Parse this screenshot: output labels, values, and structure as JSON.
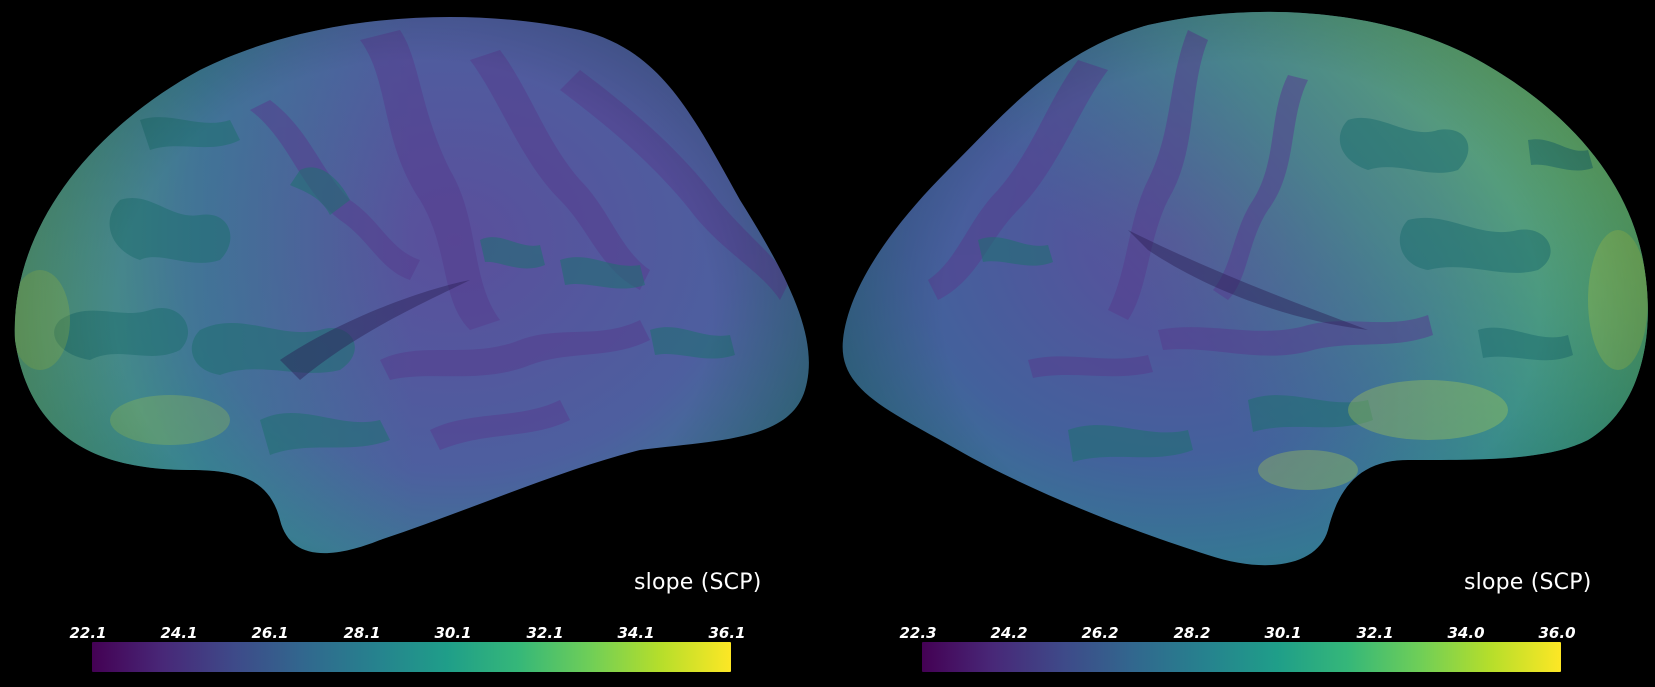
{
  "colormap": {
    "name": "viridis",
    "stops": [
      "#440154",
      "#482878",
      "#3e4a89",
      "#31688e",
      "#26828e",
      "#1f9e89",
      "#35b779",
      "#6ece58",
      "#b5de2b",
      "#fde725"
    ]
  },
  "panels": [
    {
      "id": "left-hemisphere",
      "metric_label": "slope (SCP)",
      "colorbar_ticks": [
        "22.1",
        "24.1",
        "26.1",
        "28.1",
        "30.1",
        "32.1",
        "34.1",
        "36.1"
      ]
    },
    {
      "id": "right-hemisphere",
      "metric_label": "slope (SCP)",
      "colorbar_ticks": [
        "22.3",
        "24.2",
        "26.2",
        "28.2",
        "30.1",
        "32.1",
        "34.0",
        "36.0"
      ]
    }
  ]
}
